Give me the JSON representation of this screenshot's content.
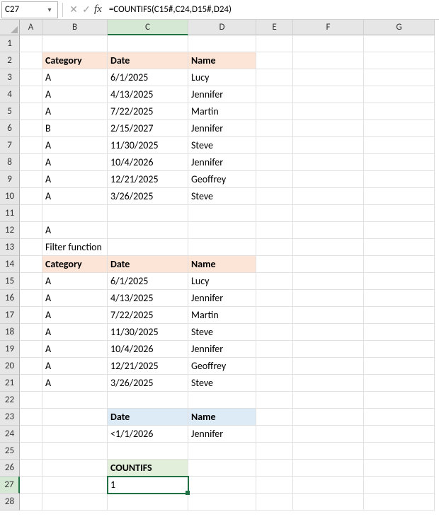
{
  "nameBox": {
    "value": "C27"
  },
  "formulaBar": {
    "cancelIcon": "✕",
    "confirmIcon": "✓",
    "fxLabel": "fx",
    "formula": "=COUNTIFS(C15#,C24,D15#,D24)"
  },
  "columns": [
    "A",
    "B",
    "C",
    "D",
    "E",
    "F",
    "G"
  ],
  "colWidths": {
    "A": 32,
    "B": 92,
    "C": 114,
    "D": 96,
    "E": 52,
    "F": 100,
    "G": 100
  },
  "activeCol": "C",
  "activeRow": 27,
  "rowCount": 28,
  "cells": {
    "r2": {
      "B": "Category",
      "C": "Date",
      "D": "Name"
    },
    "r3": {
      "B": "A",
      "C": "6/1/2025",
      "D": "Lucy"
    },
    "r4": {
      "B": "A",
      "C": "4/13/2025",
      "D": "Jennifer"
    },
    "r5": {
      "B": "A",
      "C": "7/22/2025",
      "D": "Martin"
    },
    "r6": {
      "B": "B",
      "C": "2/15/2027",
      "D": "Jennifer"
    },
    "r7": {
      "B": "A",
      "C": "11/30/2025",
      "D": "Steve"
    },
    "r8": {
      "B": "A",
      "C": "10/4/2026",
      "D": "Jennifer"
    },
    "r9": {
      "B": "A",
      "C": "12/21/2025",
      "D": "Geoffrey"
    },
    "r10": {
      "B": "A",
      "C": "3/26/2025",
      "D": "Steve"
    },
    "r12": {
      "B": "A"
    },
    "r13": {
      "B": "Filter function"
    },
    "r14": {
      "B": "Category",
      "C": "Date",
      "D": "Name"
    },
    "r15": {
      "B": "A",
      "C": "6/1/2025",
      "D": "Lucy"
    },
    "r16": {
      "B": "A",
      "C": "4/13/2025",
      "D": "Jennifer"
    },
    "r17": {
      "B": "A",
      "C": "7/22/2025",
      "D": "Martin"
    },
    "r18": {
      "B": "A",
      "C": "11/30/2025",
      "D": "Steve"
    },
    "r19": {
      "B": "A",
      "C": "10/4/2026",
      "D": "Jennifer"
    },
    "r20": {
      "B": "A",
      "C": "12/21/2025",
      "D": "Geoffrey"
    },
    "r21": {
      "B": "A",
      "C": "3/26/2025",
      "D": "Steve"
    },
    "r23": {
      "C": "Date",
      "D": "Name"
    },
    "r24": {
      "C": "<1/1/2026",
      "D": "Jennifer"
    },
    "r26": {
      "C": "COUNTIFS"
    },
    "r27": {
      "C": "1"
    }
  },
  "styling": {
    "headerOrange": "#fce4d6",
    "headerBlue": "#ddebf7",
    "headerGreen": "#e2efda",
    "gridLine": "#e0e0e0",
    "selectionBorder": "#217346",
    "headerBg": "#e6e6e6",
    "rows_orange": [
      2,
      14
    ],
    "cols_orange": [
      "B",
      "C",
      "D"
    ],
    "rows_blue": [
      23
    ],
    "cols_blue": [
      "C",
      "D"
    ],
    "rows_green": [
      26
    ],
    "cols_green": [
      "C"
    ]
  }
}
